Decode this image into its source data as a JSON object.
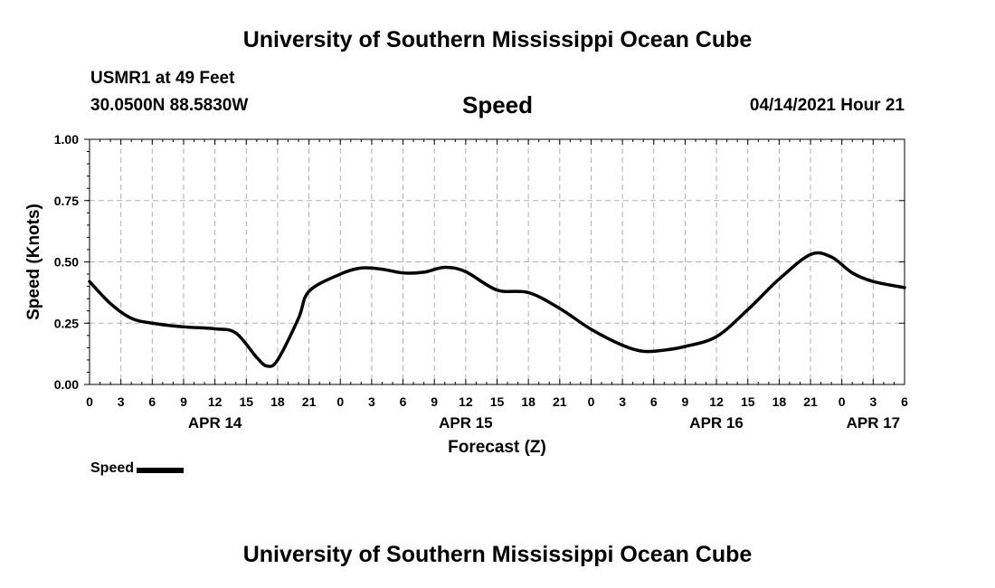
{
  "header": {
    "title": "University of Southern Mississippi Ocean Cube",
    "station": "USMR1 at 49 Feet",
    "coords": "30.0500N  88.5830W",
    "variable": "Speed",
    "datetime": "04/14/2021 Hour 21"
  },
  "footer": {
    "title": "University of Southern Mississippi Ocean Cube"
  },
  "legend": {
    "label": "Speed"
  },
  "chart_data": {
    "type": "line",
    "xlabel": "Forecast (Z)",
    "ylabel": "Speed (Knots)",
    "ylim": [
      0,
      1.0
    ],
    "yticks": [
      "0.00",
      "0.25",
      "0.50",
      "0.75",
      "1.00"
    ],
    "xlim": [
      "2021-04-14 00Z",
      "2021-04-17 06Z"
    ],
    "xtick_hour_labels": [
      "0",
      "3",
      "6",
      "9",
      "12",
      "15",
      "18",
      "21",
      "0",
      "3",
      "6",
      "9",
      "12",
      "15",
      "18",
      "21",
      "0",
      "3",
      "6",
      "9",
      "12",
      "15",
      "18",
      "21",
      "0",
      "3",
      "6"
    ],
    "date_labels": [
      {
        "label": "APR 14",
        "at": "2021-04-14 12Z"
      },
      {
        "label": "APR 15",
        "at": "2021-04-15 12Z"
      },
      {
        "label": "APR 16",
        "at": "2021-04-16 12Z"
      },
      {
        "label": "APR 17",
        "at": "2021-04-17 03Z"
      }
    ],
    "grid": true,
    "line_color": "#000000",
    "series": [
      {
        "name": "Speed",
        "points": [
          [
            "2021-04-14 00Z",
            0.42
          ],
          [
            "2021-04-14 02Z",
            0.33
          ],
          [
            "2021-04-14 04Z",
            0.27
          ],
          [
            "2021-04-14 06Z",
            0.25
          ],
          [
            "2021-04-14 09Z",
            0.235
          ],
          [
            "2021-04-14 12Z",
            0.227
          ],
          [
            "2021-04-14 14Z",
            0.21
          ],
          [
            "2021-04-14 16Z",
            0.11
          ],
          [
            "2021-04-14 17Z",
            0.075
          ],
          [
            "2021-04-14 18Z",
            0.1
          ],
          [
            "2021-04-14 20Z",
            0.27
          ],
          [
            "2021-04-14 21Z",
            0.38
          ],
          [
            "2021-04-15 00Z",
            0.45
          ],
          [
            "2021-04-15 02Z",
            0.475
          ],
          [
            "2021-04-15 04Z",
            0.47
          ],
          [
            "2021-04-15 06Z",
            0.455
          ],
          [
            "2021-04-15 08Z",
            0.458
          ],
          [
            "2021-04-15 10Z",
            0.478
          ],
          [
            "2021-04-15 12Z",
            0.46
          ],
          [
            "2021-04-15 15Z",
            0.385
          ],
          [
            "2021-04-15 18Z",
            0.375
          ],
          [
            "2021-04-15 21Z",
            0.31
          ],
          [
            "2021-04-16 00Z",
            0.225
          ],
          [
            "2021-04-16 03Z",
            0.16
          ],
          [
            "2021-04-16 05Z",
            0.135
          ],
          [
            "2021-04-16 07Z",
            0.14
          ],
          [
            "2021-04-16 09Z",
            0.155
          ],
          [
            "2021-04-16 12Z",
            0.195
          ],
          [
            "2021-04-16 15Z",
            0.305
          ],
          [
            "2021-04-16 18Z",
            0.43
          ],
          [
            "2021-04-16 21Z",
            0.53
          ],
          [
            "2021-04-16 23Z",
            0.52
          ],
          [
            "2021-04-17 01Z",
            0.455
          ],
          [
            "2021-04-17 03Z",
            0.42
          ],
          [
            "2021-04-17 06Z",
            0.395
          ]
        ]
      }
    ]
  }
}
